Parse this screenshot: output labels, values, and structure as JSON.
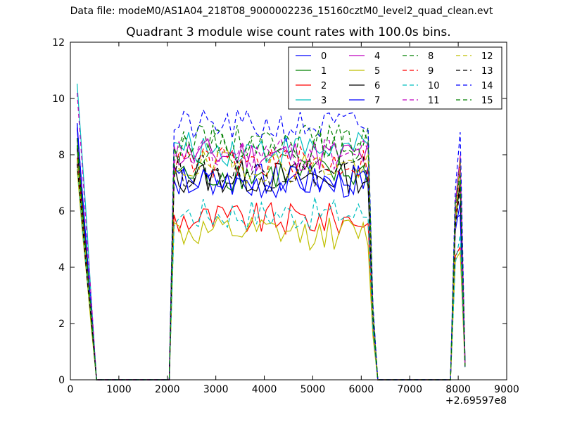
{
  "figure": {
    "suptitle": "Data file: modeM0/AS1A04_218T08_9000002236_15160cztM0_level2_quad_clean.evt",
    "title": "Quadrant 3 module wise count rates with 100.0s bins.",
    "x_offset_label": "+2.69597e8"
  },
  "chart_data": {
    "type": "line",
    "title": "Quadrant 3 module wise count rates with 100.0s bins.",
    "xlabel": "",
    "ylabel": "",
    "x_offset": "+2.69597e8",
    "xlim": [
      0,
      9000
    ],
    "ylim": [
      0,
      12
    ],
    "xticks": [
      0,
      1000,
      2000,
      3000,
      4000,
      5000,
      6000,
      7000,
      8000,
      9000
    ],
    "yticks": [
      0,
      2,
      4,
      6,
      8,
      10,
      12
    ],
    "grid": false,
    "legend": "top-right, 4 columns",
    "x": [
      140,
      240,
      340,
      440,
      540,
      2040,
      2140,
      2240,
      2340,
      2440,
      2540,
      2640,
      2740,
      2840,
      2940,
      3040,
      3140,
      3240,
      3340,
      3440,
      3540,
      3640,
      3740,
      3840,
      3940,
      4040,
      4140,
      4240,
      4340,
      4440,
      4540,
      4640,
      4740,
      4840,
      4940,
      5040,
      5140,
      5240,
      5340,
      5440,
      5540,
      5640,
      5740,
      5840,
      5940,
      6040,
      6140,
      6240,
      6340,
      7840,
      7940,
      8040,
      8140
    ],
    "note_gaps": "rates fall to 0 between x=540..2040, 6340..7840",
    "series": [
      {
        "name": "0",
        "color": "#0000ff",
        "style": "solid",
        "base": 7.1,
        "start": 9.1
      },
      {
        "name": "1",
        "color": "#008000",
        "style": "solid",
        "base": 7.3,
        "start": 8.6
      },
      {
        "name": "2",
        "color": "#ff0000",
        "style": "solid",
        "base": 5.7,
        "start": 8.0
      },
      {
        "name": "3",
        "color": "#00bfbf",
        "style": "solid",
        "base": 8.2,
        "start": 10.7
      },
      {
        "name": "4",
        "color": "#bf00bf",
        "style": "solid",
        "base": 8.0,
        "start": 8.8
      },
      {
        "name": "5",
        "color": "#bfbf00",
        "style": "solid",
        "base": 5.2,
        "start": 7.4
      },
      {
        "name": "6",
        "color": "#000000",
        "style": "solid",
        "base": 7.2,
        "start": 8.2
      },
      {
        "name": "7",
        "color": "#0000ff",
        "style": "solid",
        "base": 7.0,
        "start": 9.0
      },
      {
        "name": "8",
        "color": "#008000",
        "style": "dashed",
        "base": 8.5,
        "start": 8.7
      },
      {
        "name": "9",
        "color": "#ff0000",
        "style": "dashed",
        "base": 7.7,
        "start": 7.9
      },
      {
        "name": "10",
        "color": "#00bfbf",
        "style": "dashed",
        "base": 5.9,
        "start": 7.6
      },
      {
        "name": "11",
        "color": "#bf00bf",
        "style": "dashed",
        "base": 8.0,
        "start": 10.1
      },
      {
        "name": "12",
        "color": "#bfbf00",
        "style": "dashed",
        "base": 7.6,
        "start": 7.8
      },
      {
        "name": "13",
        "color": "#000000",
        "style": "dashed",
        "base": 7.4,
        "start": 7.7
      },
      {
        "name": "14",
        "color": "#0000ff",
        "style": "dashed",
        "base": 9.0,
        "start": 9.2
      },
      {
        "name": "15",
        "color": "#008000",
        "style": "dashed",
        "base": 8.3,
        "start": 8.5
      }
    ]
  }
}
